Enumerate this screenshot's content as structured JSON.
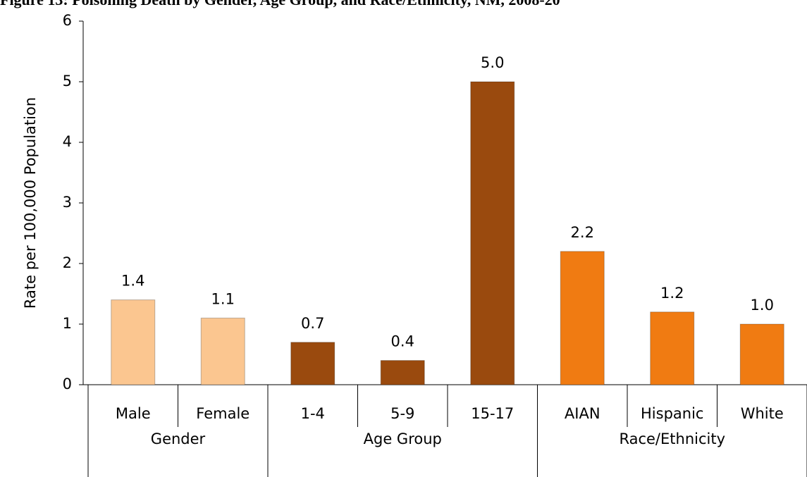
{
  "chart_data": {
    "type": "grouped-category-bar",
    "title": "Figure 13: Poisoning Death by Gender, Age Group, and Race/Ethnicity, NM, 2008-20",
    "y_label": "Rate per 100,000 Population",
    "ylim": [
      0,
      6
    ],
    "yticks": [
      0,
      1,
      2,
      3,
      4,
      5,
      6
    ],
    "groups": [
      {
        "name": "Gender",
        "color": "#fbc690",
        "categories": [
          "Male",
          "Female"
        ],
        "values": [
          1.4,
          1.1
        ],
        "value_labels": [
          "1.4",
          "1.1"
        ]
      },
      {
        "name": "Age Group",
        "color": "#9a4a0e",
        "categories": [
          "1-4",
          "5-9",
          "15-17"
        ],
        "values": [
          0.7,
          0.4,
          5.0
        ],
        "value_labels": [
          "0.7",
          "0.4",
          "5.0"
        ]
      },
      {
        "name": "Race/Ethnicity",
        "color": "#f07b12",
        "categories": [
          "AIAN",
          "Hispanic",
          "White"
        ],
        "values": [
          2.2,
          1.2,
          1.0
        ],
        "value_labels": [
          "2.2",
          "1.2",
          "1.0"
        ]
      }
    ]
  }
}
